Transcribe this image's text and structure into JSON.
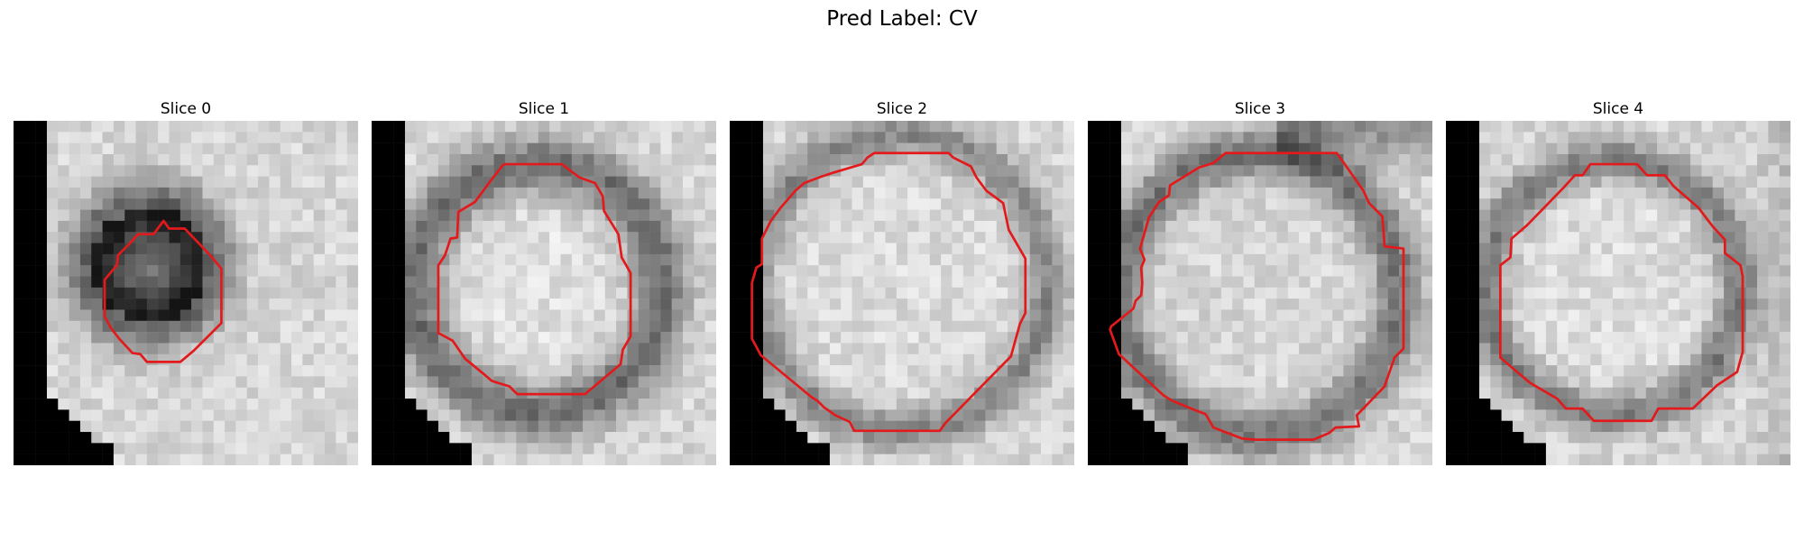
{
  "figure": {
    "title": "Pred Label: CV"
  },
  "panels": [
    {
      "title": "Slice 0"
    },
    {
      "title": "Slice 1"
    },
    {
      "title": "Slice 2"
    },
    {
      "title": "Slice 3"
    },
    {
      "title": "Slice 4"
    }
  ],
  "colors": {
    "contour": "#e31a1c",
    "background_mask": "#000000"
  }
}
